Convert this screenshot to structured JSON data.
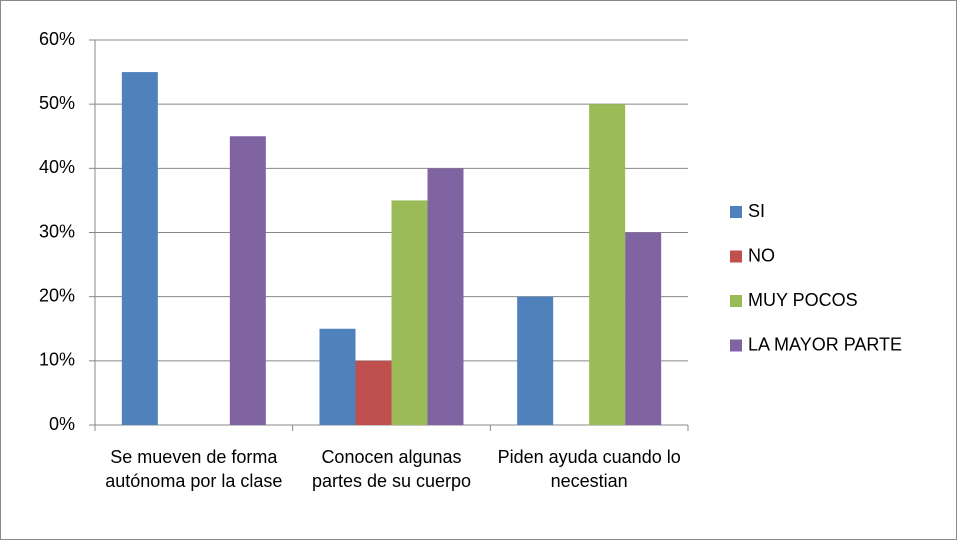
{
  "chart_data": {
    "type": "bar",
    "categories": [
      "Se mueven de forma autónoma por la clase",
      "Conocen algunas partes de su cuerpo",
      "Piden ayuda cuando lo necestian"
    ],
    "series": [
      {
        "name": "SI",
        "color": "#4f81bd",
        "values": [
          55,
          15,
          20
        ]
      },
      {
        "name": "NO",
        "color": "#c0504d",
        "values": [
          0,
          10,
          0
        ]
      },
      {
        "name": "MUY POCOS",
        "color": "#9bbb59",
        "values": [
          0,
          35,
          50
        ]
      },
      {
        "name": "LA MAYOR PARTE",
        "color": "#8064a2",
        "values": [
          45,
          40,
          30
        ]
      }
    ],
    "ylim": [
      0,
      60
    ],
    "yticks": [
      {
        "value": 0,
        "label": "0%"
      },
      {
        "value": 10,
        "label": "10%"
      },
      {
        "value": 20,
        "label": "20%"
      },
      {
        "value": 30,
        "label": "30%"
      },
      {
        "value": 40,
        "label": "40%"
      },
      {
        "value": 50,
        "label": "50%"
      },
      {
        "value": 60,
        "label": "60%"
      }
    ],
    "grid": true,
    "legend": "right"
  }
}
